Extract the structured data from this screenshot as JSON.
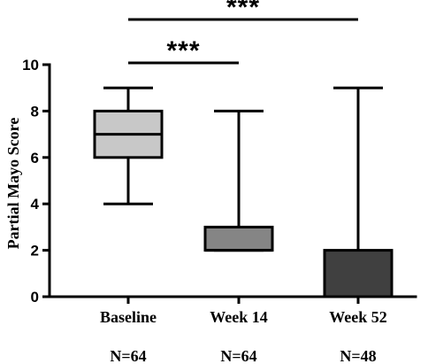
{
  "chart_data": {
    "type": "box",
    "title": "",
    "xlabel": "",
    "ylabel": "Partial Mayo Score",
    "ylim": [
      0,
      10
    ],
    "yticks": [
      0,
      2,
      4,
      6,
      8,
      10
    ],
    "grid": false,
    "categories": [
      "Baseline",
      "Week 14",
      "Week 52"
    ],
    "n_labels": [
      "N=64",
      "N=64",
      "N=48"
    ],
    "boxes": [
      {
        "min": 4,
        "q1": 6,
        "median": 7,
        "q3": 8,
        "max": 9,
        "color": "#c8c8c8"
      },
      {
        "min": 2,
        "q1": 2,
        "median": 2,
        "q3": 3,
        "max": 8,
        "color": "#858585"
      },
      {
        "min": 0,
        "q1": 0,
        "median": 0,
        "q3": 2,
        "max": 9,
        "color": "#404040"
      }
    ],
    "significance": [
      {
        "from": "Baseline",
        "to": "Week 14",
        "label": "***"
      },
      {
        "from": "Baseline",
        "to": "Week 52",
        "label": "***"
      }
    ]
  }
}
